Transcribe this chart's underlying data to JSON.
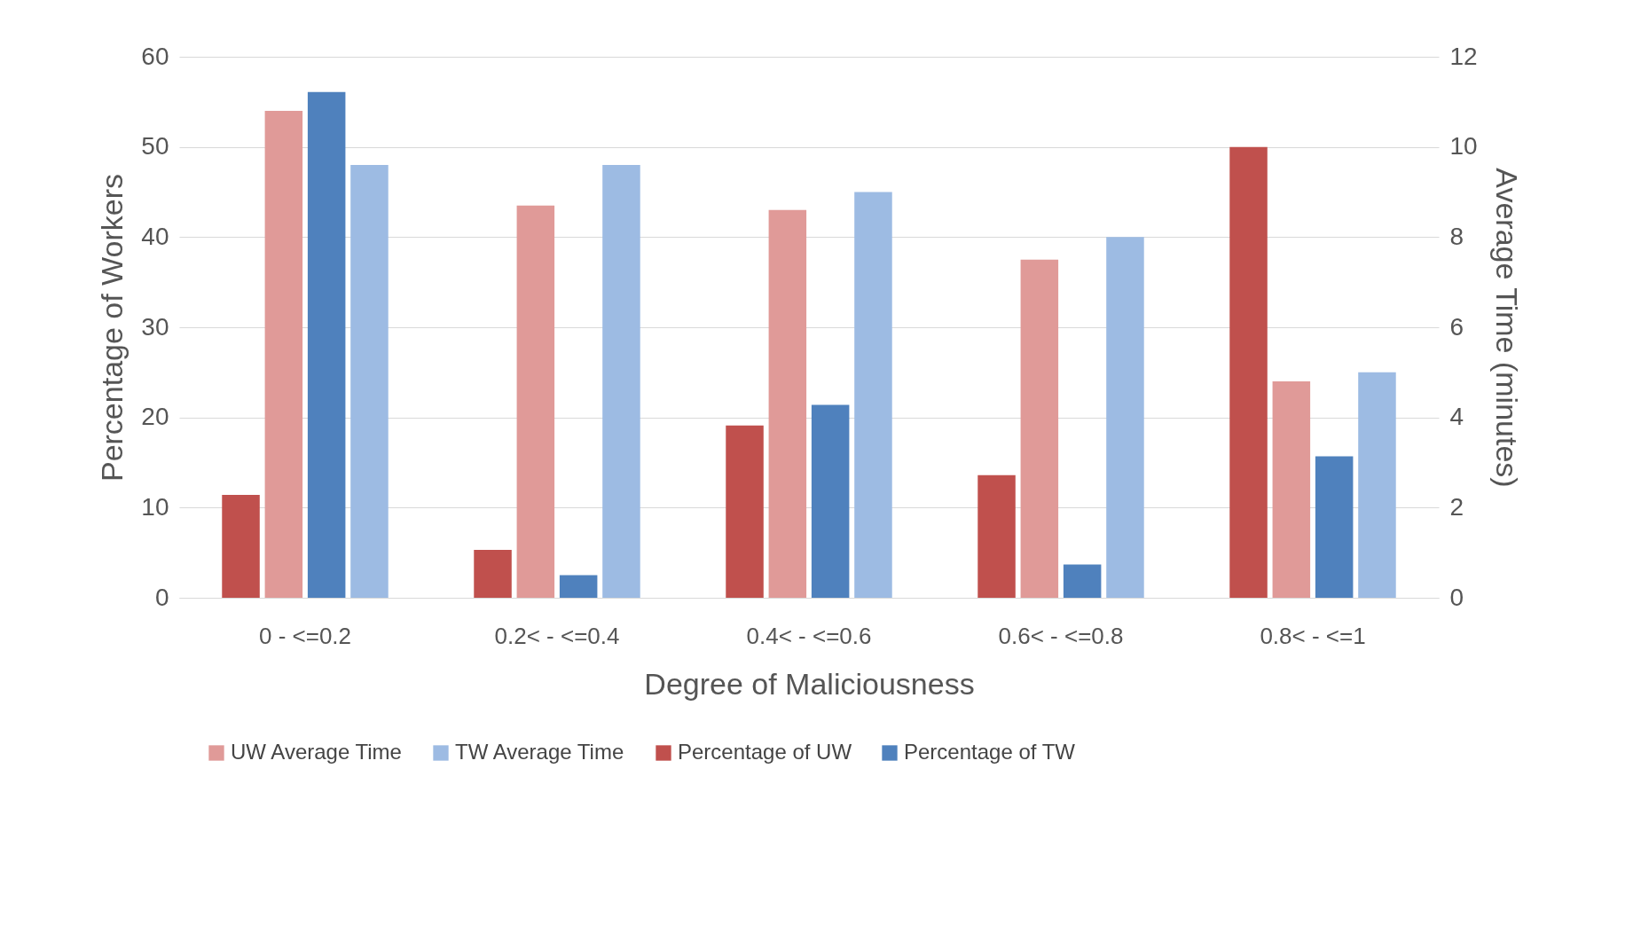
{
  "chart_data": {
    "type": "bar",
    "xlabel": "Degree of Maliciousness",
    "ylabel": "Percentage of Workers",
    "y2label": "Average Time (minutes)",
    "categories": [
      "0 - <=0.2",
      "0.2< - <=0.4",
      "0.4< - <=0.6",
      "0.6< - <=0.8",
      "0.8< - <=1"
    ],
    "series": [
      {
        "name": "Percentage of UW",
        "color": "#c0504d",
        "values": [
          11.4,
          5.3,
          19.1,
          13.6,
          50
        ]
      },
      {
        "name": "UW Average Time",
        "color": "#e09a98",
        "axis": "y2",
        "values": [
          10.8,
          8.7,
          8.6,
          7.5,
          4.8
        ]
      },
      {
        "name": "Percentage of TW",
        "color": "#4f81bd",
        "values": [
          56.1,
          2.5,
          21.4,
          3.7,
          15.7
        ]
      },
      {
        "name": "TW Average Time",
        "color": "#9dbbe3",
        "axis": "y2",
        "values": [
          9.6,
          9.6,
          9.0,
          8.0,
          5.0
        ]
      }
    ],
    "ylim": [
      0,
      60
    ],
    "yticks": [
      0,
      10,
      20,
      30,
      40,
      50,
      60
    ],
    "y2lim": [
      0,
      12
    ],
    "y2ticks": [
      0,
      2,
      4,
      6,
      8,
      10,
      12
    ],
    "grid": "y",
    "legend": "bottom"
  }
}
